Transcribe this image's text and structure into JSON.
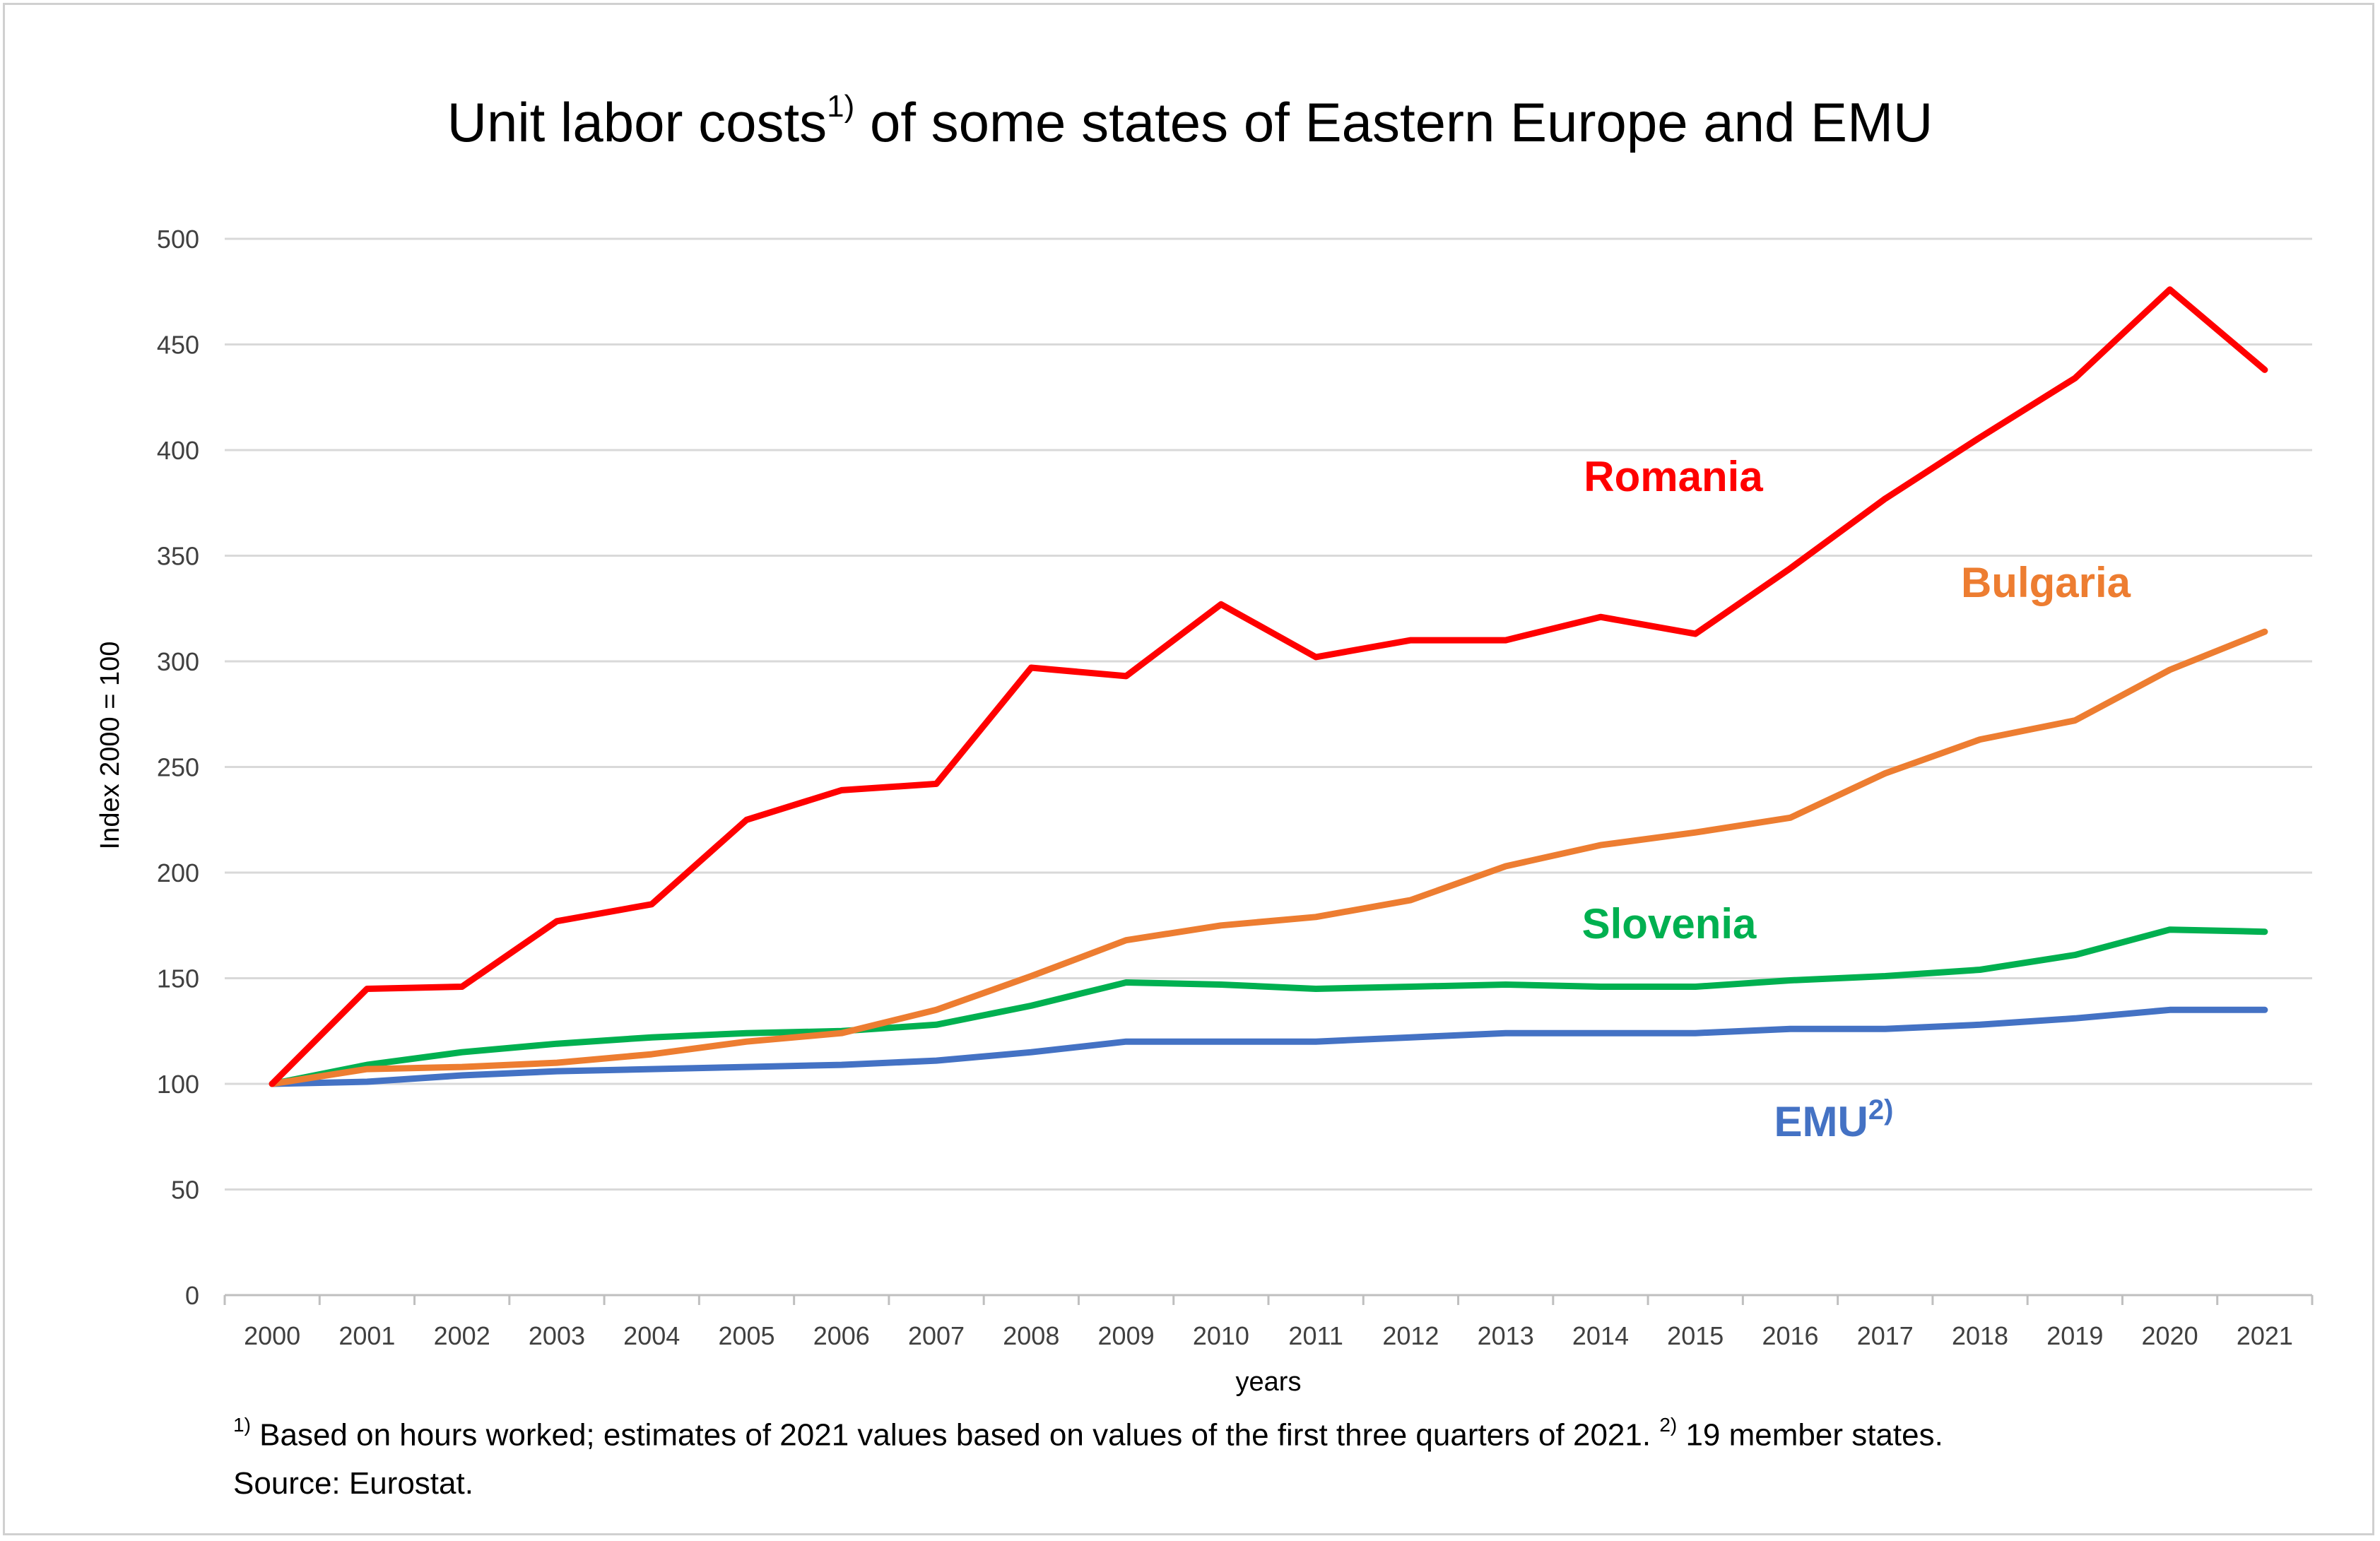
{
  "header": {
    "title_main": "Unit labor costs",
    "title_sup": "1)",
    "title_rest": " of some states of Eastern Europe and EMU"
  },
  "footnotes": {
    "line1_sup1": "1)",
    "line1_text1": " Based on hours worked; estimates of 2021 values based on values of the first three quarters of 2021. ",
    "line1_sup2": "2)",
    "line1_text2": " 19 member states.",
    "line2": "Source: Eurostat."
  },
  "chart_data": {
    "type": "line",
    "xlabel": "years",
    "ylabel": "Index 2000 = 100",
    "ylim": [
      0,
      500
    ],
    "yticks": [
      0,
      50,
      100,
      150,
      200,
      250,
      300,
      350,
      400,
      450,
      500
    ],
    "grid": true,
    "categories": [
      "2000",
      "2001",
      "2002",
      "2003",
      "2004",
      "2005",
      "2006",
      "2007",
      "2008",
      "2009",
      "2010",
      "2011",
      "2012",
      "2013",
      "2014",
      "2015",
      "2016",
      "2017",
      "2018",
      "2019",
      "2020",
      "2021"
    ],
    "series": [
      {
        "name": "Romania",
        "color": "#ff0000",
        "values": [
          100,
          145,
          146,
          177,
          185,
          225,
          239,
          242,
          297,
          293,
          327,
          302,
          310,
          310,
          321,
          313,
          344,
          377,
          406,
          434,
          476,
          438
        ]
      },
      {
        "name": "Bulgaria",
        "color": "#ed7d31",
        "values": [
          100,
          107,
          108,
          110,
          114,
          120,
          124,
          135,
          151,
          168,
          175,
          179,
          187,
          203,
          213,
          219,
          226,
          247,
          263,
          272,
          296,
          314
        ]
      },
      {
        "name": "Slovenia",
        "color": "#00b050",
        "values": [
          100,
          109,
          115,
          119,
          122,
          124,
          125,
          128,
          137,
          148,
          147,
          145,
          146,
          147,
          146,
          146,
          149,
          151,
          154,
          161,
          173,
          172
        ]
      },
      {
        "name": "EMU",
        "name_sup": "2)",
        "color": "#4472c4",
        "values": [
          100,
          101,
          104,
          106,
          107,
          108,
          109,
          111,
          115,
          120,
          120,
          120,
          122,
          124,
          124,
          124,
          126,
          126,
          128,
          131,
          135,
          135
        ]
      }
    ]
  }
}
